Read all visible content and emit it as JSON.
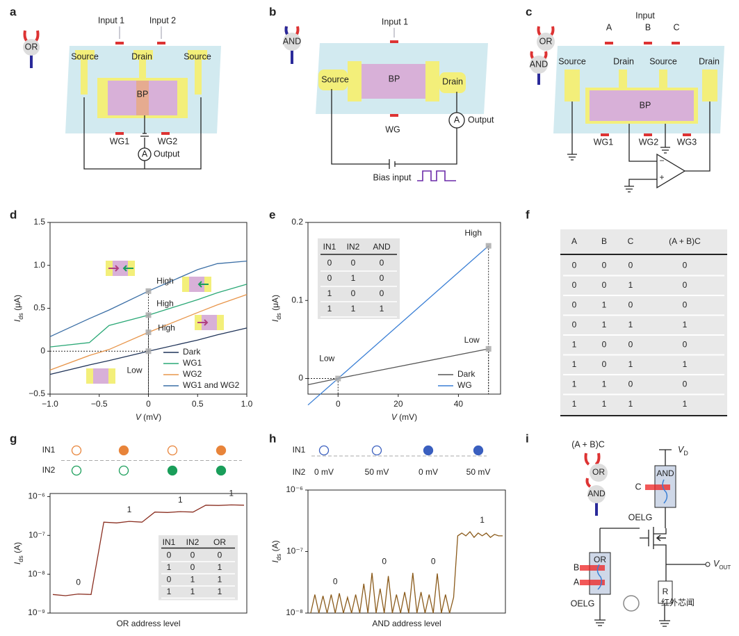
{
  "panel_labels": [
    "a",
    "b",
    "c",
    "d",
    "e",
    "f",
    "g",
    "h",
    "i"
  ],
  "a": {
    "gate": "OR",
    "inputs": [
      "Input 1",
      "Input 2"
    ],
    "electrodes": [
      "Source",
      "Drain",
      "Source"
    ],
    "channel": "BP",
    "gates": [
      "WG1",
      "WG2"
    ],
    "meter": "A",
    "output": "Output"
  },
  "b": {
    "gate": "AND",
    "input": "Input 1",
    "source": "Source",
    "channel": "BP",
    "drain": "Drain",
    "gate_label": "WG",
    "meter": "A",
    "output": "Output",
    "bias": "Bias input"
  },
  "c": {
    "gates": [
      "OR",
      "AND"
    ],
    "input": "Input",
    "inputs": [
      "A",
      "B",
      "C"
    ],
    "electrodes": [
      "Source",
      "Drain",
      "Source",
      "Drain"
    ],
    "channel": "BP",
    "wgs": [
      "WG1",
      "WG2",
      "WG3"
    ],
    "minus": "−",
    "plus": "+"
  },
  "f": {
    "header": [
      "A",
      "B",
      "C",
      "(A + B)C"
    ],
    "rows": [
      [
        0,
        0,
        0,
        0
      ],
      [
        0,
        0,
        1,
        0
      ],
      [
        0,
        1,
        0,
        0
      ],
      [
        0,
        1,
        1,
        1
      ],
      [
        1,
        0,
        0,
        0
      ],
      [
        1,
        0,
        1,
        1
      ],
      [
        1,
        1,
        0,
        0
      ],
      [
        1,
        1,
        1,
        1
      ]
    ]
  },
  "i": {
    "expression": "(A + B)C",
    "gates": [
      "OR",
      "AND"
    ],
    "vd": {
      "symbol": "V",
      "subscript": "D"
    },
    "top_device": "AND",
    "top_input": "C",
    "top_oelg": "OELG",
    "bottom_device": "OR",
    "bottom_inputs": [
      "B",
      "A"
    ],
    "bottom_oelg": "OELG",
    "resistor": "R",
    "vout": {
      "symbol": "V",
      "subscript": "OUT"
    },
    "watermark": "红外芯闻"
  },
  "chart_data": [
    {
      "type": "line",
      "xlabel": {
        "symbol": "V",
        "unit": " (mV)"
      },
      "ylabel": {
        "symbol": "I",
        "subscript": "ds",
        "unit": " (μA)"
      },
      "xlim": [
        -1,
        1
      ],
      "xticks": [
        {
          "value": -1,
          "label": "−1.0"
        },
        {
          "value": -0.5,
          "label": "−0.5"
        },
        0,
        0.5,
        {
          "value": 1,
          "label": "1.0"
        }
      ],
      "ylim": [
        -0.5,
        1.5
      ],
      "yticks": [
        {
          "value": -0.5,
          "label": "−0.5"
        },
        0,
        0.5,
        {
          "value": 1,
          "label": "1.0"
        },
        1.5
      ],
      "x": [
        -1,
        -0.6,
        -0.4,
        0,
        0.5,
        0.7,
        1
      ],
      "series": [
        {
          "name": "Dark",
          "color": "#1f3358",
          "values": [
            -0.27,
            -0.16,
            -0.11,
            0,
            0.13,
            0.19,
            0.27
          ]
        },
        {
          "name": "WG1",
          "color": "#2aa876",
          "values": [
            0.05,
            0.1,
            0.3,
            0.42,
            0.6,
            0.68,
            0.78
          ]
        },
        {
          "name": "WG2",
          "color": "#e8954a",
          "values": [
            -0.22,
            -0.05,
            0.02,
            0.22,
            0.45,
            0.54,
            0.66
          ]
        },
        {
          "name": "WG1 and WG2",
          "color": "#3a6ea5",
          "values": [
            0.17,
            0.38,
            0.48,
            0.7,
            0.95,
            1.02,
            1.05
          ]
        }
      ],
      "legend": "lower right",
      "annotations": [
        {
          "text": "High",
          "x": 0,
          "y": 0.7
        },
        {
          "text": "High",
          "x": 0,
          "y": 0.42
        },
        {
          "text": "High",
          "x": 0,
          "y": 0.22
        },
        {
          "text": "Low",
          "x": 0,
          "y": 0
        }
      ]
    },
    {
      "type": "line",
      "xlabel": {
        "symbol": "V",
        "unit": " (mV)"
      },
      "ylabel": {
        "symbol": "I",
        "subscript": "ds",
        "unit": " (μA)"
      },
      "xlim": [
        -10,
        54
      ],
      "xticks": [
        0,
        20,
        40
      ],
      "ylim": [
        -0.02,
        0.2
      ],
      "yticks": [
        0,
        0.1,
        0.2
      ],
      "x": [
        -10,
        0,
        50
      ],
      "series": [
        {
          "name": "Dark",
          "color": "#555555",
          "values": [
            -0.008,
            0,
            0.038
          ]
        },
        {
          "name": "WG",
          "color": "#3a7fd5",
          "values": [
            -0.034,
            0,
            0.17
          ]
        }
      ],
      "legend": "lower right",
      "annotations": [
        {
          "text": "High",
          "x": 50,
          "y": 0.17
        },
        {
          "text": "Low",
          "x": 50,
          "y": 0.038
        },
        {
          "text": "Low",
          "x": 0,
          "y": 0
        }
      ],
      "inset_table": {
        "header": [
          "IN1",
          "IN2",
          "AND"
        ],
        "rows": [
          [
            0,
            0,
            0
          ],
          [
            0,
            1,
            0
          ],
          [
            1,
            0,
            0
          ],
          [
            1,
            1,
            1
          ]
        ]
      }
    },
    {
      "type": "line",
      "xlabel": "OR address level",
      "ylabel": {
        "symbol": "I",
        "subscript": "ds",
        "unit": " (A)"
      },
      "ylog": true,
      "ylim": [
        1e-09,
        1.2e-06
      ],
      "yticks": [
        {
          "value": 1e-09,
          "label": "10⁻⁹"
        },
        {
          "value": 1e-08,
          "label": "10⁻⁸"
        },
        {
          "value": 1e-07,
          "label": "10⁻⁷"
        },
        {
          "value": 1e-06,
          "label": "10⁻⁶"
        }
      ],
      "color": "#8a2e20",
      "values": [
        3e-09,
        2.8e-09,
        3.1e-09,
        3e-09,
        2.2e-07,
        2.1e-07,
        2.3e-07,
        2.2e-07,
        4e-07,
        3.9e-07,
        4.1e-07,
        4e-07,
        6e-07,
        5.9e-07,
        6.1e-07,
        6e-07
      ],
      "state_labels": [
        "0",
        "1",
        "1",
        "1"
      ],
      "inputs": {
        "labels": [
          "IN1",
          "IN2"
        ],
        "colors": [
          "#e8843a",
          "#1a9e5a"
        ],
        "states": [
          [
            0,
            1,
            0,
            1
          ],
          [
            0,
            0,
            1,
            1
          ]
        ]
      },
      "inset_table": {
        "header": [
          "IN1",
          "IN2",
          "OR"
        ],
        "rows": [
          [
            0,
            0,
            0
          ],
          [
            1,
            0,
            1
          ],
          [
            0,
            1,
            1
          ],
          [
            1,
            1,
            1
          ]
        ]
      }
    },
    {
      "type": "line",
      "xlabel": "AND address level",
      "ylabel": {
        "symbol": "I",
        "subscript": "ds",
        "unit": " (A)"
      },
      "ylog": true,
      "ylim": [
        1e-08,
        1e-06
      ],
      "yticks": [
        {
          "value": 1e-08,
          "label": "10⁻⁸"
        },
        {
          "value": 1e-07,
          "label": "10⁻⁷"
        },
        {
          "value": 1e-06,
          "label": "10⁻⁶"
        }
      ],
      "color": "#8a5a1a",
      "values": [
        1e-08,
        2e-08,
        1e-08,
        1.9e-08,
        1e-08,
        2e-08,
        1e-08,
        2.1e-08,
        1e-08,
        1.8e-08,
        1e-08,
        2e-08,
        1e-08,
        3e-08,
        1e-08,
        4.5e-08,
        1e-08,
        2.5e-08,
        1e-08,
        4e-08,
        1e-08,
        2e-08,
        1e-08,
        2.2e-08,
        1e-08,
        4.5e-08,
        1e-08,
        2.2e-08,
        1e-08,
        2e-08,
        1e-08,
        4.4e-08,
        1e-08,
        2e-08,
        1e-08,
        1.8e-08,
        1.8e-07,
        2e-07,
        1.8e-07,
        2.1e-07,
        1.7e-07,
        2e-07,
        1.8e-07,
        2e-07,
        1.7e-07,
        1.9e-07,
        1.8e-07,
        1.8e-07
      ],
      "state_labels": [
        "0",
        "0",
        "0",
        "1"
      ],
      "inputs": {
        "labels": [
          "IN1",
          "IN2"
        ],
        "colors": [
          "#3a5fbf"
        ],
        "states": [
          [
            0,
            0,
            1,
            1
          ]
        ],
        "in2_texts": [
          "0 mV",
          "50 mV",
          "0 mV",
          "50 mV"
        ]
      }
    }
  ]
}
